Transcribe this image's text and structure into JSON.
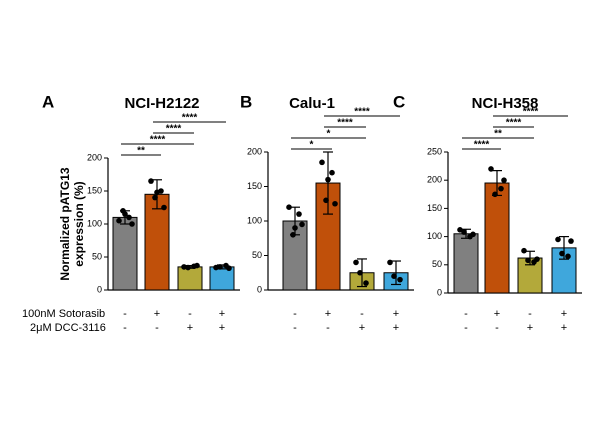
{
  "conditions": [
    "100nM Sotorasib",
    "2μM DCC-3116"
  ],
  "chart_data": [
    {
      "type": "bar",
      "panel_label": "A",
      "title": "NCI-H2122",
      "y_label": [
        "Normalized pATG13",
        "expression (%)"
      ],
      "colors": [
        "#808080",
        "#c0500a",
        "#b3a93a",
        "#3fa7dc"
      ],
      "values": [
        110,
        145,
        35,
        35
      ],
      "errors": [
        10,
        22,
        2,
        3
      ],
      "points": [
        [
          105,
          110,
          120,
          100,
          115
        ],
        [
          165,
          150,
          140,
          125,
          148
        ],
        [
          35,
          36,
          34,
          37
        ],
        [
          34,
          37,
          35,
          33
        ]
      ],
      "signs": [
        [
          "-",
          "+",
          "-",
          "+"
        ],
        [
          "-",
          "-",
          "+",
          "+"
        ]
      ],
      "significance": [
        "**",
        "****",
        "****",
        "****"
      ],
      "ylim": [
        0,
        200
      ],
      "yticks": [
        0,
        50,
        100,
        150,
        200
      ]
    },
    {
      "type": "bar",
      "panel_label": "B",
      "title": "Calu-1",
      "colors": [
        "#808080",
        "#c0500a",
        "#b3a93a",
        "#3fa7dc"
      ],
      "values": [
        100,
        155,
        25,
        25
      ],
      "errors": [
        20,
        45,
        20,
        17
      ],
      "points": [
        [
          120,
          110,
          80,
          95,
          90
        ],
        [
          185,
          170,
          130,
          125,
          160
        ],
        [
          40,
          10,
          25
        ],
        [
          40,
          15,
          20
        ]
      ],
      "signs": [
        [
          "-",
          "+",
          "-",
          "+"
        ],
        [
          "-",
          "-",
          "+",
          "+"
        ]
      ],
      "significance": [
        "*",
        "*",
        "****",
        "****"
      ],
      "ylim": [
        0,
        200
      ],
      "yticks": [
        0,
        50,
        100,
        150,
        200
      ]
    },
    {
      "type": "bar",
      "panel_label": "C",
      "title": "NCI-H358",
      "colors": [
        "#808080",
        "#c0500a",
        "#b3a93a",
        "#3fa7dc"
      ],
      "values": [
        105,
        195,
        62,
        80
      ],
      "errors": [
        8,
        22,
        12,
        20
      ],
      "points": [
        [
          112,
          100,
          108,
          104
        ],
        [
          220,
          185,
          175,
          200
        ],
        [
          75,
          55,
          58,
          60
        ],
        [
          95,
          65,
          70,
          92
        ]
      ],
      "signs": [
        [
          "-",
          "+",
          "-",
          "+"
        ],
        [
          "-",
          "-",
          "+",
          "+"
        ]
      ],
      "significance": [
        "****",
        "**",
        "****",
        "****"
      ],
      "ylim": [
        0,
        250
      ],
      "yticks": [
        0,
        50,
        100,
        150,
        200,
        250
      ]
    }
  ]
}
